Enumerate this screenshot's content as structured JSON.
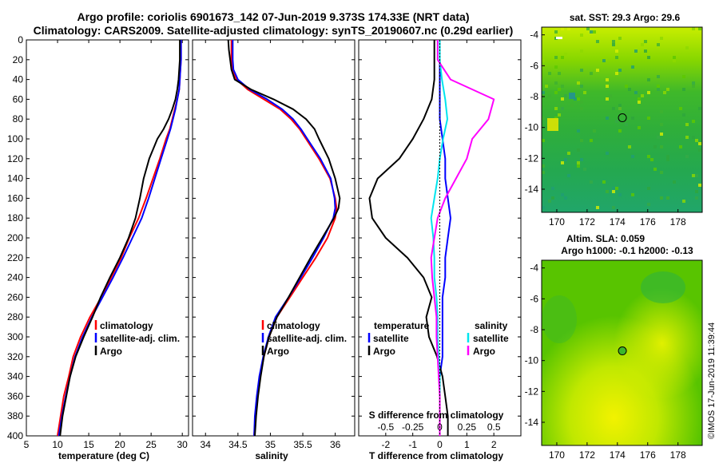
{
  "figure": {
    "title_line1": "Argo profile: coriolis 6901673_142 07-Jun-2019 9.373S 174.33E (NRT data)",
    "title_line2": "Climatology: CARS2009. Satellite-adjusted climatology: synTS_20190607.nc (0.29d earlier)",
    "credit": "©IMOS 17-Jun-2019 11:39:44"
  },
  "colors": {
    "climatology": "#ff0000",
    "satellite_adj": "#0000ff",
    "argo": "#000000",
    "satellite_sal": "#00e5ee",
    "argo_sal": "#ff00ff",
    "map_marker": "#000000"
  },
  "chart_data": [
    {
      "type": "line",
      "id": "temperature",
      "xlabel": "temperature (deg C)",
      "ylabel": "",
      "xlim": [
        5,
        31
      ],
      "ylim": [
        400,
        0
      ],
      "xticks": [
        "5",
        "10",
        "15",
        "20",
        "25",
        "30"
      ],
      "yticks": [
        "0",
        "20",
        "40",
        "60",
        "80",
        "100",
        "120",
        "140",
        "160",
        "180",
        "200",
        "220",
        "240",
        "260",
        "280",
        "300",
        "320",
        "340",
        "360",
        "380",
        "400"
      ],
      "legend": [
        "climatology",
        "satellite-adj. clim.",
        "Argo"
      ],
      "legend_position": "bottom-right",
      "depth": [
        0,
        10,
        20,
        30,
        40,
        50,
        60,
        70,
        80,
        90,
        100,
        120,
        140,
        160,
        180,
        200,
        220,
        240,
        260,
        280,
        300,
        320,
        340,
        360,
        380,
        400
      ],
      "series": [
        {
          "name": "climatology",
          "values": [
            29.8,
            29.8,
            29.8,
            29.7,
            29.6,
            29.5,
            29.2,
            28.8,
            28.4,
            28.0,
            27.4,
            26.4,
            25.3,
            24.2,
            23.0,
            21.5,
            20.2,
            18.6,
            17.0,
            15.2,
            13.7,
            12.5,
            11.8,
            11.0,
            10.5,
            10.0
          ]
        },
        {
          "name": "satellite-adj. clim.",
          "values": [
            29.8,
            29.8,
            29.8,
            29.7,
            29.6,
            29.5,
            29.2,
            28.9,
            28.5,
            28.1,
            27.6,
            26.6,
            25.6,
            24.6,
            23.5,
            22.0,
            20.5,
            18.9,
            17.2,
            15.5,
            14.0,
            12.8,
            12.0,
            11.3,
            10.7,
            10.2
          ]
        },
        {
          "name": "Argo",
          "values": [
            29.6,
            29.6,
            29.6,
            29.5,
            29.4,
            29.2,
            28.9,
            28.4,
            27.8,
            27.0,
            26.0,
            24.7,
            23.8,
            23.2,
            22.5,
            21.4,
            20.0,
            18.4,
            16.9,
            15.6,
            14.2,
            12.9,
            12.0,
            11.4,
            10.8,
            10.4
          ]
        }
      ]
    },
    {
      "type": "line",
      "id": "salinity",
      "xlabel": "salinity",
      "xlim": [
        33.8,
        36.3
      ],
      "ylim": [
        400,
        0
      ],
      "xticks": [
        "34",
        "34.5",
        "35",
        "35.5",
        "36"
      ],
      "legend": [
        "climatology",
        "satellite-adj. clim.",
        "Argo"
      ],
      "legend_position": "bottom-right",
      "depth": [
        0,
        10,
        20,
        30,
        40,
        50,
        60,
        70,
        80,
        90,
        100,
        120,
        140,
        160,
        170,
        180,
        200,
        220,
        240,
        260,
        280,
        300,
        320,
        340,
        360,
        380,
        400
      ],
      "series": [
        {
          "name": "climatology",
          "values": [
            34.4,
            34.4,
            34.4,
            34.41,
            34.48,
            34.65,
            34.9,
            35.15,
            35.32,
            35.45,
            35.55,
            35.75,
            35.92,
            36.0,
            36.02,
            36.0,
            35.88,
            35.7,
            35.5,
            35.3,
            35.1,
            34.98,
            34.9,
            34.84,
            34.8,
            34.77,
            34.75
          ]
        },
        {
          "name": "satellite-adj. clim.",
          "values": [
            34.42,
            34.42,
            34.42,
            34.43,
            34.5,
            34.68,
            34.95,
            35.18,
            35.35,
            35.47,
            35.57,
            35.77,
            35.93,
            35.99,
            36.0,
            35.97,
            35.82,
            35.65,
            35.47,
            35.28,
            35.08,
            34.97,
            34.89,
            34.83,
            34.79,
            34.76,
            34.75
          ]
        },
        {
          "name": "Argo",
          "values": [
            34.35,
            34.36,
            34.38,
            34.4,
            34.45,
            34.7,
            35.05,
            35.35,
            35.55,
            35.68,
            35.75,
            35.9,
            36.0,
            36.07,
            36.05,
            35.98,
            35.8,
            35.62,
            35.45,
            35.28,
            35.1,
            34.98,
            34.9,
            34.85,
            34.81,
            34.78,
            34.76
          ]
        }
      ]
    },
    {
      "type": "line",
      "id": "difference",
      "xlabel": "T difference from climatology",
      "xlabel_top": "S difference from climatology",
      "xlim": [
        -3,
        3
      ],
      "ylim": [
        400,
        0
      ],
      "xticks": [
        "-2",
        "-1",
        "0",
        "1",
        "2"
      ],
      "xticks_top": [
        "-0.5",
        "-0.25",
        "0",
        "0.25",
        "0.5"
      ],
      "legend_temperature_title": "temperature",
      "legend_salinity_title": "salinity",
      "legend_temperature": [
        "satellite",
        "Argo"
      ],
      "legend_salinity": [
        "satellite",
        "Argo"
      ],
      "legend_position": "bottom",
      "depth": [
        0,
        20,
        40,
        60,
        80,
        100,
        120,
        140,
        160,
        180,
        200,
        220,
        240,
        260,
        280,
        300,
        320,
        340,
        360,
        380,
        400
      ],
      "series": [
        {
          "name": "temperature satellite",
          "values": [
            0.0,
            0.0,
            0.0,
            0.0,
            0.0,
            0.1,
            0.2,
            0.2,
            0.3,
            0.4,
            0.3,
            0.2,
            0.2,
            0.1,
            0.1,
            0.1,
            0.1,
            0.0,
            0.0,
            0.0,
            0.0
          ]
        },
        {
          "name": "temperature Argo",
          "values": [
            -0.2,
            -0.2,
            -0.2,
            -0.3,
            -0.6,
            -1.0,
            -1.5,
            -2.3,
            -2.6,
            -2.5,
            -2.0,
            -1.2,
            -0.6,
            -0.3,
            -0.5,
            -0.4,
            -0.1,
            0.1,
            0.2,
            0.3,
            0.3
          ]
        },
        {
          "name": "salinity satellite",
          "values": [
            0.0,
            0.0,
            0.02,
            0.05,
            0.07,
            0.03,
            0.0,
            -0.02,
            -0.05,
            -0.08,
            -0.06,
            -0.05,
            -0.05,
            -0.03,
            -0.02,
            -0.02,
            -0.01,
            0.0,
            0.0,
            0.0,
            0.0
          ]
        },
        {
          "name": "salinity Argo",
          "values": [
            -0.02,
            -0.02,
            0.1,
            0.5,
            0.45,
            0.3,
            0.25,
            0.15,
            0.05,
            -0.02,
            -0.05,
            -0.08,
            -0.07,
            -0.05,
            -0.03,
            -0.03,
            -0.02,
            -0.01,
            0.0,
            0.0,
            0.0
          ]
        }
      ]
    },
    {
      "type": "heatmap",
      "id": "sst_map",
      "title": "sat. SST: 29.3 Argo: 29.6",
      "xlim": [
        169,
        179.6
      ],
      "ylim": [
        -15.5,
        -3.5
      ],
      "xticks": [
        "170",
        "172",
        "174",
        "176",
        "178"
      ],
      "yticks": [
        "-4",
        "-6",
        "-8",
        "-10",
        "-12",
        "-14"
      ],
      "marker": {
        "lon": 174.33,
        "lat": -9.373
      }
    },
    {
      "type": "heatmap",
      "id": "sla_map",
      "title": "Altim. SLA: 0.059",
      "subtitle": "Argo h1000: -0.1 h2000: -0.13",
      "xlim": [
        169,
        179.6
      ],
      "ylim": [
        -15.5,
        -3.5
      ],
      "xticks": [
        "170",
        "172",
        "174",
        "176",
        "178"
      ],
      "yticks": [
        "-4",
        "-6",
        "-8",
        "-10",
        "-12",
        "-14"
      ],
      "marker": {
        "lon": 174.33,
        "lat": -9.373
      }
    }
  ]
}
